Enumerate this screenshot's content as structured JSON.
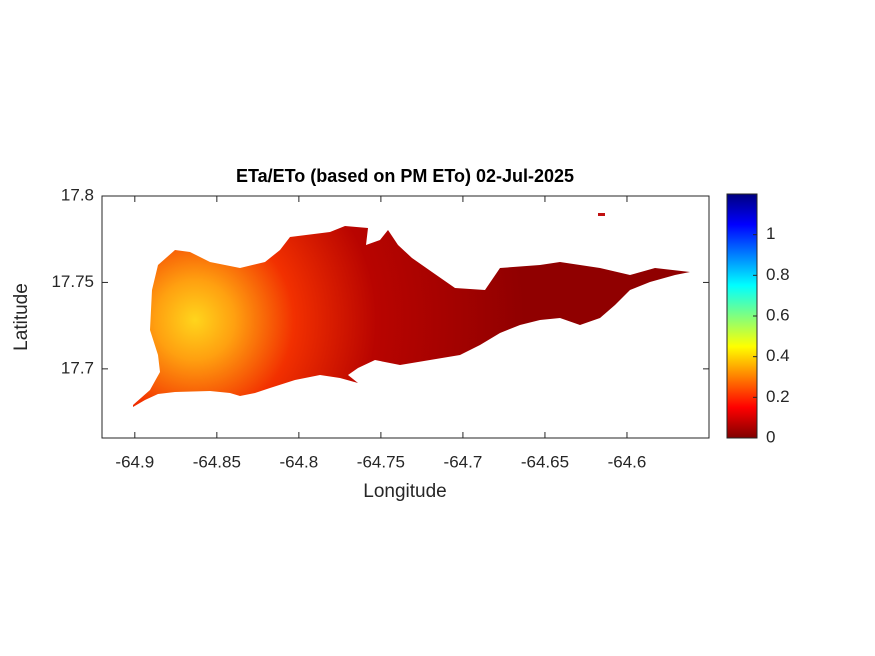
{
  "chart_data": {
    "type": "map",
    "title": "ETa/ETo (based on PM ETo) 02-Jul-2025",
    "xlabel": "Longitude",
    "ylabel": "Latitude",
    "xlim": [
      -64.92,
      -64.55
    ],
    "xticks": [
      -64.9,
      -64.85,
      -64.8,
      -64.75,
      -64.7,
      -64.65,
      -64.6
    ],
    "ylim": [
      17.66,
      17.8
    ],
    "yticks": [
      17.7,
      17.75,
      17.8
    ],
    "colorbar": {
      "clim": [
        0,
        1.2
      ],
      "ticks": [
        0,
        0.2,
        0.4,
        0.6,
        0.8,
        1
      ]
    }
  }
}
